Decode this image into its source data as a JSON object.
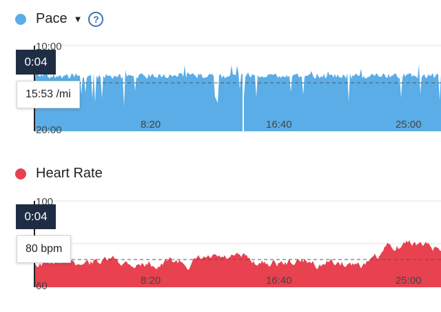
{
  "pace": {
    "title": "Pace",
    "color": "#5aade6",
    "dropdown_icon": "caret-down-icon",
    "help_icon": "question-circle-icon",
    "help_symbol": "?",
    "cursor_time": "0:04",
    "tooltip_value": "15:53 /mi",
    "y_ticks": [
      "10:00",
      "20:00"
    ],
    "x_ticks": [
      "8:20",
      "16:40",
      "25:00"
    ]
  },
  "heart_rate": {
    "title": "Heart Rate",
    "color": "#e8414f",
    "cursor_time": "0:04",
    "tooltip_value": "80 bpm",
    "y_ticks": [
      "100",
      "80",
      "60"
    ],
    "x_ticks": [
      "8:20",
      "16:40",
      "25:00"
    ]
  }
}
